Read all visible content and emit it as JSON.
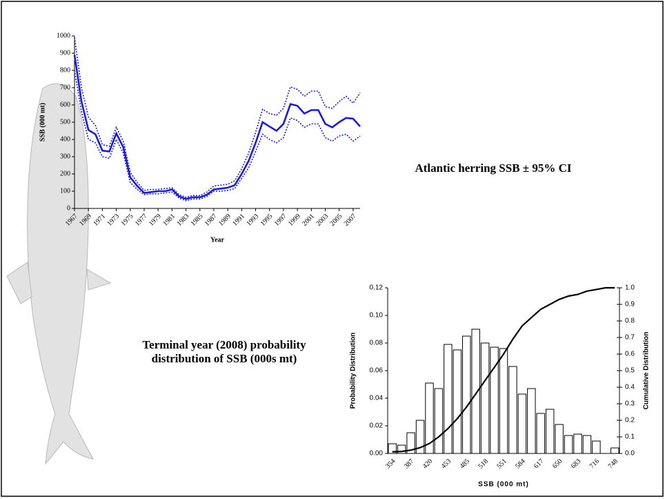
{
  "chart_data": [
    {
      "type": "line",
      "annotation": "Atlantic herring SSB ± 95% CI",
      "x_label": "Year",
      "y_label": "SSB (000 mt)",
      "x": [
        1967,
        1968,
        1969,
        1970,
        1971,
        1972,
        1973,
        1974,
        1975,
        1976,
        1977,
        1978,
        1979,
        1980,
        1981,
        1982,
        1983,
        1984,
        1985,
        1986,
        1987,
        1988,
        1989,
        1990,
        1991,
        1992,
        1993,
        1994,
        1995,
        1996,
        1997,
        1998,
        1999,
        2000,
        2001,
        2002,
        2003,
        2004,
        2005,
        2006,
        2007,
        2008
      ],
      "series": [
        {
          "style": "solid",
          "color": "#1a1ae0",
          "values": [
            890,
            620,
            455,
            430,
            335,
            330,
            435,
            355,
            180,
            130,
            90,
            95,
            100,
            100,
            110,
            70,
            55,
            65,
            65,
            80,
            110,
            115,
            120,
            135,
            200,
            275,
            380,
            500,
            475,
            450,
            490,
            605,
            595,
            550,
            570,
            570,
            490,
            470,
            500,
            525,
            520,
            475
          ]
        },
        {
          "style": "dotted",
          "color": "#1a1ae0",
          "values": [
            990,
            700,
            530,
            480,
            370,
            360,
            470,
            390,
            210,
            150,
            105,
            110,
            110,
            115,
            120,
            80,
            65,
            75,
            75,
            95,
            130,
            135,
            140,
            160,
            230,
            320,
            440,
            575,
            550,
            540,
            580,
            705,
            690,
            650,
            680,
            680,
            590,
            580,
            620,
            650,
            610,
            670
          ]
        },
        {
          "style": "dotted",
          "color": "#1a1ae0",
          "values": [
            800,
            560,
            400,
            380,
            300,
            290,
            400,
            320,
            150,
            110,
            80,
            85,
            85,
            90,
            95,
            60,
            45,
            55,
            55,
            70,
            100,
            100,
            105,
            115,
            175,
            235,
            330,
            430,
            400,
            380,
            410,
            525,
            510,
            470,
            490,
            490,
            410,
            390,
            420,
            430,
            390,
            420
          ]
        }
      ],
      "xlim": [
        1967,
        2008
      ],
      "xticks": [
        1967,
        1969,
        1971,
        1973,
        1975,
        1977,
        1979,
        1981,
        1983,
        1985,
        1987,
        1989,
        1991,
        1993,
        1995,
        1997,
        1999,
        2001,
        2003,
        2005,
        2007
      ],
      "ylim": [
        0,
        1000
      ],
      "yticks": [
        0,
        100,
        200,
        300,
        400,
        500,
        600,
        700,
        800,
        900,
        1000
      ]
    },
    {
      "type": "bar",
      "annotation": "Terminal year (2008) probability distribution of SSB (000s mt)",
      "x_label": "SSB (000 mt)",
      "y_label": "Probability Distribution",
      "y2_label": "Cumulative Distribution",
      "categories": [
        "354",
        null,
        "387",
        null,
        "420",
        null,
        "453",
        null,
        "485",
        null,
        "518",
        null,
        "551",
        null,
        "584",
        null,
        "617",
        null,
        "650",
        null,
        "683",
        null,
        "716",
        null,
        "748"
      ],
      "series": [
        {
          "type": "bar",
          "color": "#ffffff",
          "values": [
            0.007,
            0.006,
            0.015,
            0.024,
            0.051,
            0.047,
            0.079,
            0.075,
            0.085,
            0.09,
            0.08,
            0.077,
            0.076,
            0.063,
            0.043,
            0.047,
            0.029,
            0.032,
            0.021,
            0.013,
            0.014,
            0.013,
            0.009,
            0.0,
            0.004
          ]
        },
        {
          "type": "line",
          "axis": "y2",
          "color": "#000000",
          "values": [
            0.01,
            0.012,
            0.02,
            0.035,
            0.06,
            0.1,
            0.15,
            0.21,
            0.28,
            0.36,
            0.44,
            0.52,
            0.6,
            0.69,
            0.77,
            0.82,
            0.87,
            0.9,
            0.93,
            0.95,
            0.96,
            0.98,
            0.99,
            1.0,
            1.0
          ]
        }
      ],
      "ylim": [
        0,
        0.12
      ],
      "yticks": [
        {
          "value": 0,
          "label": "0.00"
        },
        {
          "value": 0.02,
          "label": "0.02"
        },
        {
          "value": 0.04,
          "label": "0.04"
        },
        {
          "value": 0.06,
          "label": "0.06"
        },
        {
          "value": 0.08,
          "label": "0.08"
        },
        {
          "value": 0.1,
          "label": "0.10"
        },
        {
          "value": 0.12,
          "label": "0.12"
        }
      ],
      "y2lim": [
        0,
        1
      ],
      "y2ticks": [
        {
          "value": 0,
          "label": "0.0"
        },
        {
          "value": 0.1,
          "label": "0.1"
        },
        {
          "value": 0.2,
          "label": "0.2"
        },
        {
          "value": 0.3,
          "label": "0.3"
        },
        {
          "value": 0.4,
          "label": "0.4"
        },
        {
          "value": 0.5,
          "label": "0.5"
        },
        {
          "value": 0.6,
          "label": "0.6"
        },
        {
          "value": 0.7,
          "label": "0.7"
        },
        {
          "value": 0.8,
          "label": "0.8"
        },
        {
          "value": 0.9,
          "label": "0.9"
        },
        {
          "value": 1,
          "label": "1.0"
        }
      ]
    }
  ]
}
